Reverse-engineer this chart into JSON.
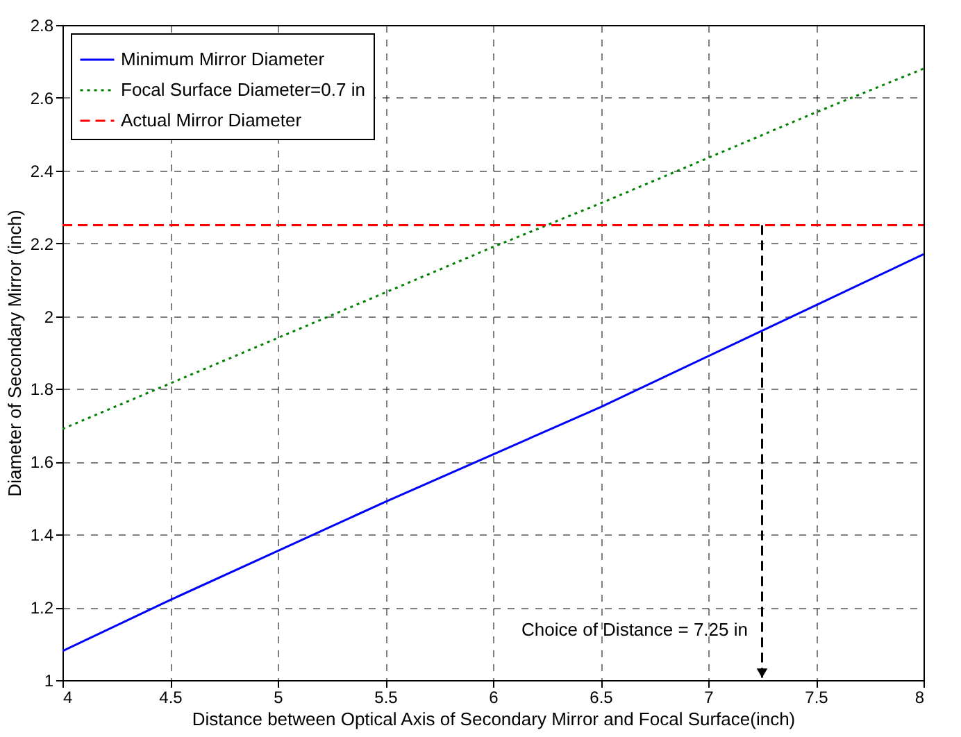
{
  "chart_data": {
    "type": "line",
    "xlabel": "Distance between Optical Axis of Secondary Mirror and Focal Surface(inch)",
    "ylabel": "Diameter of Secondary Mirror (inch)",
    "xlim": [
      4,
      8
    ],
    "xticks": [
      4,
      4.5,
      5,
      5.5,
      6,
      6.5,
      7,
      7.5,
      8
    ],
    "ylim": [
      1,
      2.8
    ],
    "yticks": [
      1,
      1.2,
      1.4,
      1.6,
      1.8,
      2,
      2.2,
      2.4,
      2.6,
      2.8
    ],
    "grid": true,
    "legend": "top left",
    "series": [
      {
        "name": "Minimum Mirror Diameter",
        "color": "#0000ff",
        "line_style": "solid",
        "x": [
          4,
          4.5,
          5,
          5.5,
          6,
          6.5,
          7,
          7.5,
          8
        ],
        "values": [
          1.08,
          1.22,
          1.355,
          1.49,
          1.62,
          1.75,
          1.89,
          2.03,
          2.17
        ]
      },
      {
        "name": "Focal Surface Diameter=0.7 in",
        "color": "#008000",
        "line_style": "dotted",
        "x": [
          4,
          4.5,
          5,
          5.5,
          6,
          6.5,
          7,
          7.5,
          8
        ],
        "values": [
          1.69,
          1.815,
          1.94,
          2.065,
          2.19,
          2.31,
          2.435,
          2.56,
          2.68
        ]
      },
      {
        "name": "Actual Mirror Diameter",
        "color": "#ff0000",
        "line_style": "dashed",
        "x": [
          4,
          8
        ],
        "values": [
          2.25,
          2.25
        ]
      }
    ],
    "ref_lines": [
      {
        "axis": "x",
        "value": 7.25,
        "color": "#000000",
        "line_style": "dashed"
      }
    ],
    "annotations": [
      "Choice of Distance = 7.25 in"
    ]
  }
}
